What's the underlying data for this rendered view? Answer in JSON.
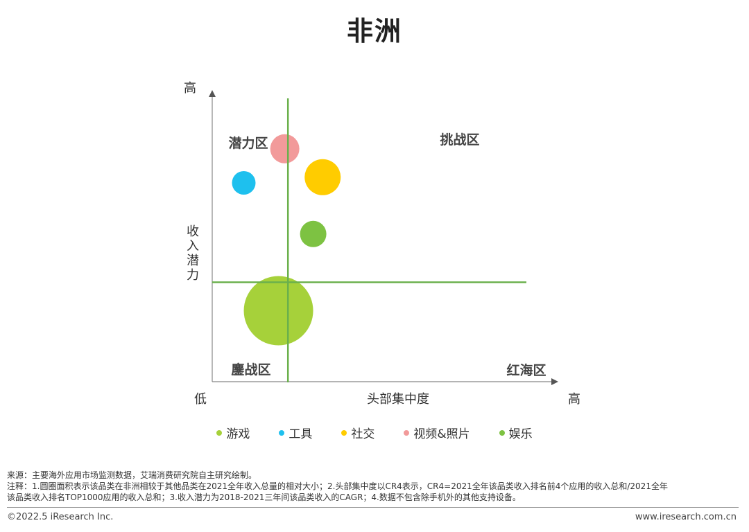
{
  "title": "非洲",
  "chart_data": {
    "type": "bubble",
    "y_axis": {
      "high_label": "高",
      "label_chars": [
        "收",
        "入",
        "潜",
        "力"
      ]
    },
    "x_axis": {
      "low_label": "低",
      "high_label": "高",
      "label": "头部集中度"
    },
    "quadrants": {
      "top_left": "潜力区",
      "top_right": "挑战区",
      "bottom_left": "鏖战区",
      "bottom_right": "红海区"
    },
    "series": [
      {
        "name": "游戏",
        "color": "#A6D13A",
        "x": 0.21,
        "y": 0.25,
        "size": 50
      },
      {
        "name": "工具",
        "color": "#1EC0EE",
        "x": 0.1,
        "y": 0.7,
        "size": 17
      },
      {
        "name": "社交",
        "color": "#FFCC00",
        "x": 0.35,
        "y": 0.72,
        "size": 26
      },
      {
        "name": "视频&照片",
        "color": "#F29A9A",
        "x": 0.23,
        "y": 0.82,
        "size": 21
      },
      {
        "name": "娱乐",
        "color": "#7DC242",
        "x": 0.32,
        "y": 0.52,
        "size": 19
      }
    ],
    "dividers": {
      "x": 0.24,
      "y": 0.35
    }
  },
  "footer": {
    "source": "来源：主要海外应用市场监测数据，艾瑞消费研究院自主研究绘制。",
    "notes_1": "注释：1.圆圈面积表示该品类在非洲相较于其他品类在2021全年收入总量的相对大小；2.头部集中度以CR4表示，CR4=2021全年该品类收入排名前4个应用的收入总和/2021全年",
    "notes_2": "该品类收入排名TOP1000应用的收入总和；3.收入潜力为2018-2021三年间该品类收入的CAGR；4.数据不包含除手机外的其他支持设备。",
    "copyright": "©2022.5 iResearch Inc.",
    "website": "www.iresearch.com.cn"
  }
}
